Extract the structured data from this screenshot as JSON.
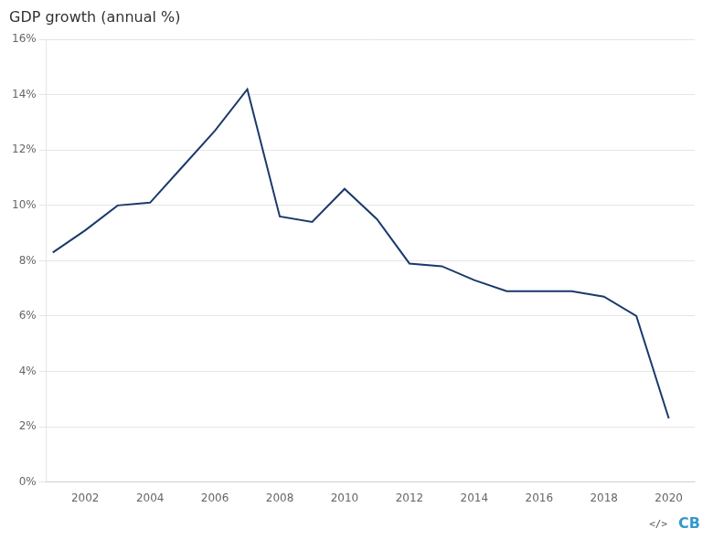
{
  "chart_data": {
    "type": "line",
    "title": "GDP growth (annual %)",
    "x": [
      2001,
      2002,
      2003,
      2004,
      2005,
      2006,
      2007,
      2008,
      2009,
      2010,
      2011,
      2012,
      2013,
      2014,
      2015,
      2016,
      2017,
      2018,
      2019,
      2020
    ],
    "values": [
      8.3,
      9.1,
      10.0,
      10.1,
      11.4,
      12.7,
      14.2,
      9.6,
      9.4,
      10.6,
      9.5,
      7.9,
      7.8,
      7.3,
      6.9,
      6.9,
      6.9,
      6.7,
      6.0,
      2.3
    ],
    "color": "#1a3a6b",
    "xlim": [
      2000.8,
      2020.8
    ],
    "xticks": [
      2002,
      2004,
      2006,
      2008,
      2010,
      2012,
      2014,
      2016,
      2018,
      2020
    ],
    "ylim": [
      0,
      16
    ],
    "yticks": [
      {
        "value": 0,
        "label": "0%"
      },
      {
        "value": 2,
        "label": "2%"
      },
      {
        "value": 4,
        "label": "4%"
      },
      {
        "value": 6,
        "label": "6%"
      },
      {
        "value": 8,
        "label": "8%"
      },
      {
        "value": 10,
        "label": "10%"
      },
      {
        "value": 12,
        "label": "12%"
      },
      {
        "value": 14,
        "label": "14%"
      },
      {
        "value": 16,
        "label": "16%"
      }
    ],
    "grid": "y",
    "annotations": [
      "</>",
      "CB"
    ]
  }
}
